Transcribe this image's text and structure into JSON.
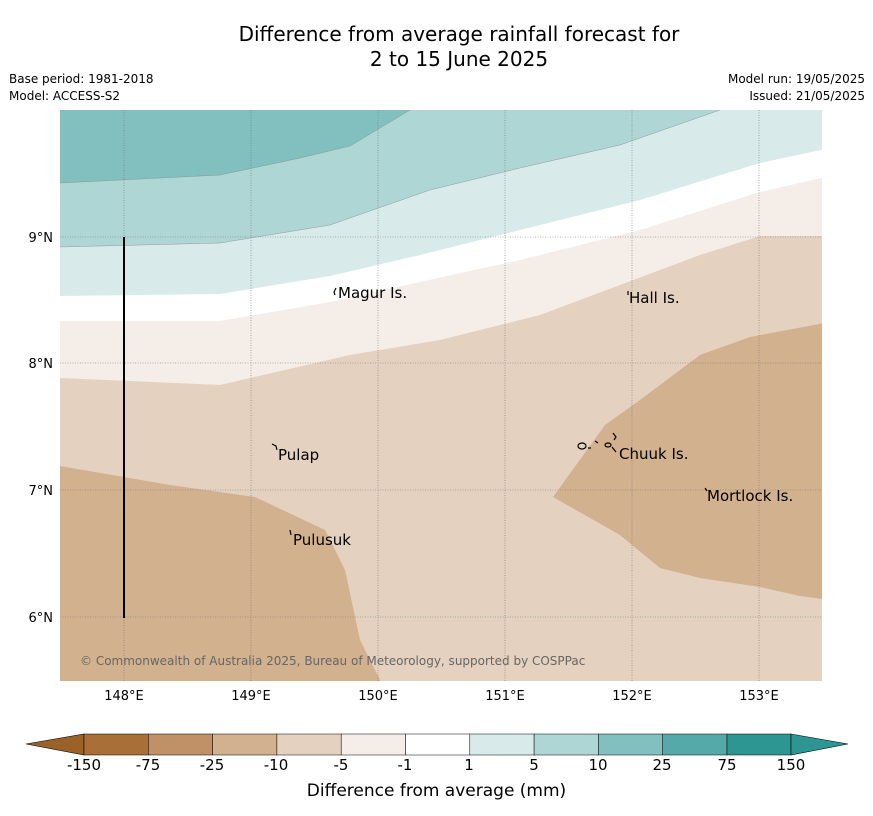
{
  "header": {
    "title_line1": "Difference from average rainfall forecast for",
    "title_line2": "2 to 15 June 2025",
    "base_period": "Base period: 1981-2018",
    "model": "Model: ACCESS-S2",
    "model_run": "Model run: 19/05/2025",
    "issued": "Issued: 21/05/2025"
  },
  "map": {
    "lon_range": [
      147.5,
      153.5
    ],
    "lat_range": [
      5.5,
      10.0
    ],
    "lon_ticks": [
      "148°E",
      "149°E",
      "150°E",
      "151°E",
      "152°E",
      "153°E"
    ],
    "lat_ticks": [
      "9°N",
      "8°N",
      "7°N",
      "6°N"
    ],
    "gridlines": true,
    "places": [
      "Magur Is.",
      "Hall Is.",
      "Pulap",
      "Chuuk Is.",
      "Mortlock Is.",
      "Pulusuk"
    ],
    "copyright": "© Commonwealth of Australia 2025, Bureau of Meteorology, supported by COSPPac"
  },
  "colorbar": {
    "title": "Difference from average (mm)",
    "ticks": [
      "-150",
      "-75",
      "-25",
      "-10",
      "-5",
      "-1",
      "1",
      "5",
      "10",
      "25",
      "75",
      "150"
    ],
    "colors": [
      "#a86f38",
      "#c09066",
      "#d2b18f",
      "#e4d1bf",
      "#f4ede8",
      "#ffffff",
      "#d8eae9",
      "#add6d5",
      "#82bfbf",
      "#55a9a8",
      "#2e9692"
    ],
    "extend": "both"
  }
}
